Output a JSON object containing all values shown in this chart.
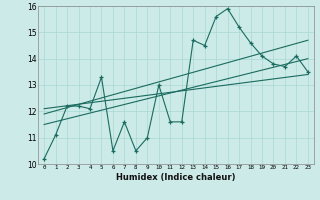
{
  "xlabel": "Humidex (Indice chaleur)",
  "bg_color": "#cceae7",
  "grid_color": "#a8d8d4",
  "line_color": "#1a6b60",
  "xlim": [
    -0.5,
    23.5
  ],
  "ylim": [
    10,
    16
  ],
  "main_x": [
    0,
    1,
    2,
    3,
    4,
    5,
    6,
    7,
    8,
    9,
    10,
    11,
    12,
    13,
    14,
    15,
    16,
    17,
    18,
    19,
    20,
    21,
    22,
    23
  ],
  "main_y": [
    10.2,
    11.1,
    12.2,
    12.2,
    12.1,
    13.3,
    10.5,
    11.6,
    10.5,
    11.0,
    13.0,
    11.6,
    11.6,
    14.7,
    14.5,
    15.6,
    15.9,
    15.2,
    14.6,
    14.1,
    13.8,
    13.7,
    14.1,
    13.5
  ],
  "trend1_x": [
    0,
    23
  ],
  "trend1_y": [
    11.5,
    14.0
  ],
  "trend2_x": [
    0,
    23
  ],
  "trend2_y": [
    11.9,
    14.7
  ],
  "trend3_x": [
    0,
    23
  ],
  "trend3_y": [
    12.1,
    13.4
  ],
  "yticks": [
    10,
    11,
    12,
    13,
    14,
    15,
    16
  ],
  "xticks": [
    0,
    1,
    2,
    3,
    4,
    5,
    6,
    7,
    8,
    9,
    10,
    11,
    12,
    13,
    14,
    15,
    16,
    17,
    18,
    19,
    20,
    21,
    22,
    23
  ]
}
